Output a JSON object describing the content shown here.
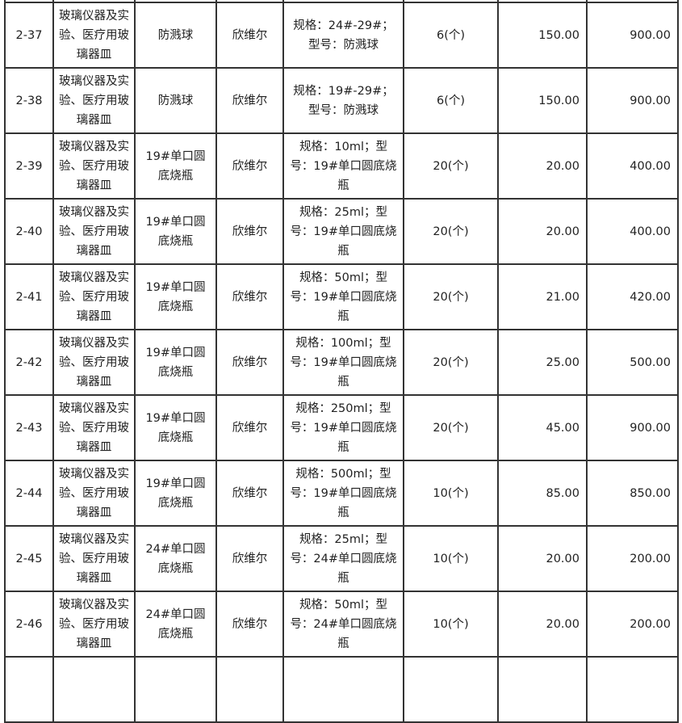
{
  "rows": [
    {
      "no": "2-37",
      "category": "玻璃仪器及实验、医疗用玻璃器皿",
      "name": "防溅球",
      "brand": "欣维尔",
      "spec": "规格：24#-29#；型号：防溅球",
      "qty": "6(个)",
      "price": "150.00",
      "total": "900.00"
    },
    {
      "no": "2-38",
      "category": "玻璃仪器及实验、医疗用玻璃器皿",
      "name": "防溅球",
      "brand": "欣维尔",
      "spec": "规格：19#-29#；型号：防溅球",
      "qty": "6(个)",
      "price": "150.00",
      "total": "900.00"
    },
    {
      "no": "2-39",
      "category": "玻璃仪器及实验、医疗用玻璃器皿",
      "name": "19#单口圆底烧瓶",
      "brand": "欣维尔",
      "spec": "规格：10ml；型号：19#单口圆底烧瓶",
      "qty": "20(个)",
      "price": "20.00",
      "total": "400.00"
    },
    {
      "no": "2-40",
      "category": "玻璃仪器及实验、医疗用玻璃器皿",
      "name": "19#单口圆底烧瓶",
      "brand": "欣维尔",
      "spec": "规格：25ml；型号：19#单口圆底烧瓶",
      "qty": "20(个)",
      "price": "20.00",
      "total": "400.00"
    },
    {
      "no": "2-41",
      "category": "玻璃仪器及实验、医疗用玻璃器皿",
      "name": "19#单口圆底烧瓶",
      "brand": "欣维尔",
      "spec": "规格：50ml；型号：19#单口圆底烧瓶",
      "qty": "20(个)",
      "price": "21.00",
      "total": "420.00"
    },
    {
      "no": "2-42",
      "category": "玻璃仪器及实验、医疗用玻璃器皿",
      "name": "19#单口圆底烧瓶",
      "brand": "欣维尔",
      "spec": "规格：100ml；型号：19#单口圆底烧瓶",
      "qty": "20(个)",
      "price": "25.00",
      "total": "500.00"
    },
    {
      "no": "2-43",
      "category": "玻璃仪器及实验、医疗用玻璃器皿",
      "name": "19#单口圆底烧瓶",
      "brand": "欣维尔",
      "spec": "规格：250ml；型号：19#单口圆底烧瓶",
      "qty": "20(个)",
      "price": "45.00",
      "total": "900.00"
    },
    {
      "no": "2-44",
      "category": "玻璃仪器及实验、医疗用玻璃器皿",
      "name": "19#单口圆底烧瓶",
      "brand": "欣维尔",
      "spec": "规格：500ml；型号：19#单口圆底烧瓶",
      "qty": "10(个)",
      "price": "85.00",
      "total": "850.00"
    },
    {
      "no": "2-45",
      "category": "玻璃仪器及实验、医疗用玻璃器皿",
      "name": "24#单口圆底烧瓶",
      "brand": "欣维尔",
      "spec": "规格：25ml；型号：24#单口圆底烧瓶",
      "qty": "10(个)",
      "price": "20.00",
      "total": "200.00"
    },
    {
      "no": "2-46",
      "category": "玻璃仪器及实验、医疗用玻璃器皿",
      "name": "24#单口圆底烧瓶",
      "brand": "欣维尔",
      "spec": "规格：50ml；型号：24#单口圆底烧瓶",
      "qty": "10(个)",
      "price": "20.00",
      "total": "200.00"
    }
  ]
}
